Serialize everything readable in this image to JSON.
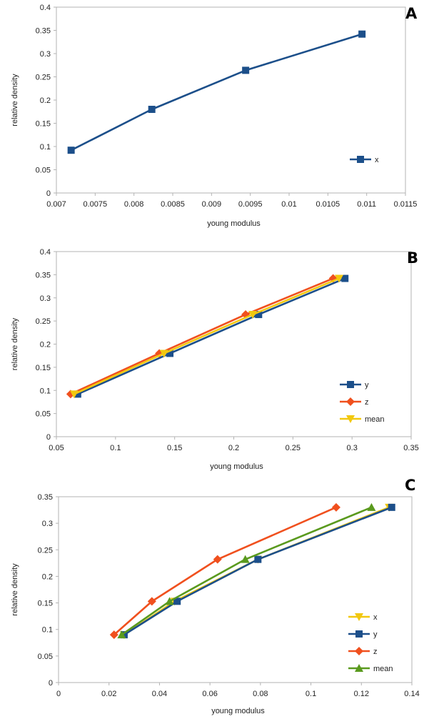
{
  "chart_data": [
    {
      "panel": "A",
      "type": "line",
      "xlabel": "young modulus",
      "ylabel": "relative density",
      "xlim": [
        0.007,
        0.0115
      ],
      "ylim": [
        0,
        0.4
      ],
      "xticks": [
        0.007,
        0.0075,
        0.008,
        0.0085,
        0.009,
        0.0095,
        0.01,
        0.0105,
        0.011,
        0.0115
      ],
      "xtick_labels": [
        "0.007",
        "0.0075",
        "0.008",
        "0.0085",
        "0.009",
        "0.0095",
        "0.01",
        "0.0105",
        "0.011",
        "0.0115"
      ],
      "yticks": [
        0,
        0.05,
        0.1,
        0.15,
        0.2,
        0.25,
        0.3,
        0.35,
        0.4
      ],
      "ytick_labels": [
        "0",
        "0.05",
        "0.1",
        "0.15",
        "0.2",
        "0.25",
        "0.3",
        "0.35",
        "0.4"
      ],
      "legend_position": "lower-right",
      "series": [
        {
          "name": "x",
          "color": "#1c4f8a",
          "marker": "square",
          "x": [
            0.00719,
            0.00823,
            0.00944,
            0.01094
          ],
          "y": [
            0.092,
            0.18,
            0.264,
            0.342
          ]
        }
      ]
    },
    {
      "panel": "B",
      "type": "line",
      "xlabel": "young modulus",
      "ylabel": "relative density",
      "xlim": [
        0.05,
        0.35
      ],
      "ylim": [
        0,
        0.4
      ],
      "xticks": [
        0.05,
        0.1,
        0.15,
        0.2,
        0.25,
        0.3,
        0.35
      ],
      "xtick_labels": [
        "0.05",
        "0.1",
        "0.15",
        "0.2",
        "0.25",
        "0.3",
        "0.35"
      ],
      "yticks": [
        0,
        0.05,
        0.1,
        0.15,
        0.2,
        0.25,
        0.3,
        0.35,
        0.4
      ],
      "ytick_labels": [
        "0",
        "0.05",
        "0.1",
        "0.15",
        "0.2",
        "0.25",
        "0.3",
        "0.35",
        "0.4"
      ],
      "legend_position": "lower-right",
      "series": [
        {
          "name": "y",
          "color": "#1c4f8a",
          "marker": "square",
          "x": [
            0.068,
            0.146,
            0.221,
            0.294
          ],
          "y": [
            0.092,
            0.18,
            0.264,
            0.342
          ]
        },
        {
          "name": "z",
          "color": "#f0501e",
          "marker": "diamond",
          "x": [
            0.062,
            0.137,
            0.21,
            0.284
          ],
          "y": [
            0.092,
            0.18,
            0.264,
            0.342
          ]
        },
        {
          "name": "mean",
          "color": "#f2c80f",
          "marker": "triangle-down",
          "x": [
            0.065,
            0.141,
            0.216,
            0.289
          ],
          "y": [
            0.092,
            0.18,
            0.264,
            0.342
          ]
        }
      ]
    },
    {
      "panel": "C",
      "type": "line",
      "xlabel": "young modulus",
      "ylabel": "relative density",
      "xlim": [
        0,
        0.14
      ],
      "ylim": [
        0,
        0.35
      ],
      "xticks": [
        0,
        0.02,
        0.04,
        0.06,
        0.08,
        0.1,
        0.12,
        0.14
      ],
      "xtick_labels": [
        "0",
        "0.02",
        "0.04",
        "0.06",
        "0.08",
        "0.1",
        "0.12",
        "0.14"
      ],
      "yticks": [
        0,
        0.05,
        0.1,
        0.15,
        0.2,
        0.25,
        0.3,
        0.35
      ],
      "ytick_labels": [
        "0",
        "0.05",
        "0.1",
        "0.15",
        "0.2",
        "0.25",
        "0.3",
        "0.35"
      ],
      "legend_position": "lower-right",
      "series": [
        {
          "name": "x",
          "color": "#f2c80f",
          "marker": "triangle-down",
          "x": [
            0.026,
            0.046,
            0.079,
            0.131
          ],
          "y": [
            0.09,
            0.153,
            0.232,
            0.33
          ]
        },
        {
          "name": "y",
          "color": "#1c4f8a",
          "marker": "square",
          "x": [
            0.026,
            0.047,
            0.079,
            0.132
          ],
          "y": [
            0.09,
            0.153,
            0.232,
            0.33
          ]
        },
        {
          "name": "z",
          "color": "#f0501e",
          "marker": "diamond",
          "x": [
            0.022,
            0.037,
            0.063,
            0.11
          ],
          "y": [
            0.09,
            0.153,
            0.232,
            0.33
          ]
        },
        {
          "name": "mean",
          "color": "#5a9a1e",
          "marker": "triangle-up",
          "x": [
            0.025,
            0.044,
            0.074,
            0.124
          ],
          "y": [
            0.09,
            0.153,
            0.232,
            0.33
          ]
        }
      ]
    }
  ]
}
